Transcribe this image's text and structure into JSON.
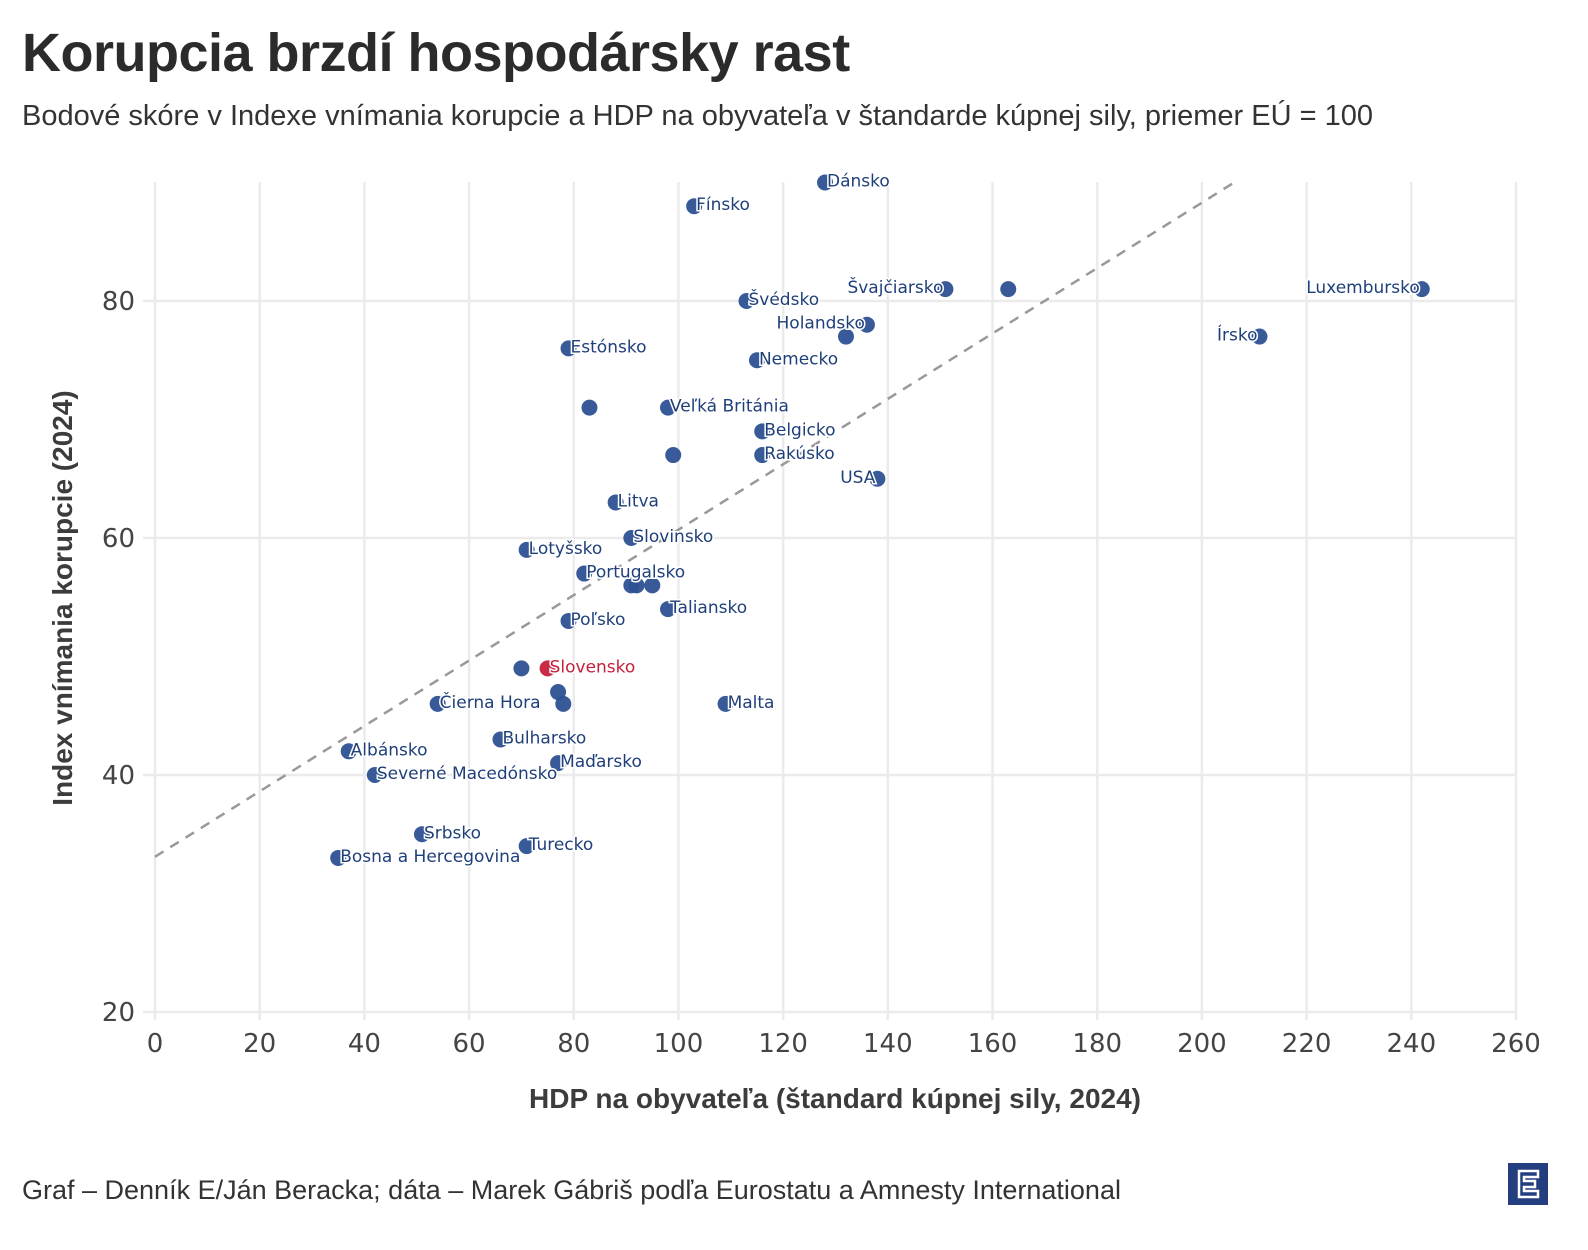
{
  "header": {
    "title": "Korupcia brzdí hospodársky rast",
    "subtitle": "Bodové skóre v Indexe vnímania korupcie a HDP na obyvateľa v štandarde kúpnej sily, priemer EÚ = 100"
  },
  "footer": {
    "credit": "Graf – Denník E/Ján Beracka; dáta – Marek Gábriš podľa Eurostatu a Amnesty International",
    "logo_icon": "denník-e-logo-icon"
  },
  "colors": {
    "point": "#2d5192",
    "label": "#1f3f7a",
    "highlight": "#c4213a",
    "trend": "#999999",
    "grid": "#ebebeb"
  },
  "chart_data": {
    "type": "scatter",
    "title": "Korupcia brzdí hospodársky rast",
    "xlabel": "HDP na obyvateľa (štandard kúpnej sily, 2024)",
    "ylabel": "Index vnímania korupcie (2024)",
    "xlim": [
      0,
      260
    ],
    "ylim": [
      20,
      90
    ],
    "xticks": [
      0,
      20,
      40,
      60,
      80,
      100,
      120,
      140,
      160,
      180,
      200,
      220,
      240,
      260
    ],
    "yticks": [
      20,
      40,
      60,
      80
    ],
    "grid": true,
    "trendline": {
      "style": "dashed",
      "intercept": 33.1,
      "slope": 0.276,
      "x_start": 0,
      "x_end": 206.3
    },
    "points": [
      {
        "label": "Dánsko",
        "x": 128,
        "y": 90,
        "label_side": "right"
      },
      {
        "label": "Fínsko",
        "x": 103,
        "y": 88,
        "label_side": "right"
      },
      {
        "label": "Švédsko",
        "x": 113,
        "y": 80,
        "label_side": "right"
      },
      {
        "label": "Švajčiarsko",
        "x": 151,
        "y": 81,
        "label_side": "left"
      },
      {
        "label": "",
        "x": 163,
        "y": 81
      },
      {
        "label": "Holandsko",
        "x": 136,
        "y": 78,
        "label_side": "left"
      },
      {
        "label": "",
        "x": 132,
        "y": 77
      },
      {
        "label": "Luxembursko",
        "x": 242,
        "y": 81,
        "label_side": "left"
      },
      {
        "label": "Írsko",
        "x": 211,
        "y": 77,
        "label_side": "left"
      },
      {
        "label": "Estónsko",
        "x": 79,
        "y": 76,
        "label_side": "right"
      },
      {
        "label": "Nemecko",
        "x": 115,
        "y": 75,
        "label_side": "right"
      },
      {
        "label": "",
        "x": 83,
        "y": 71
      },
      {
        "label": "Veľká Británia",
        "x": 98,
        "y": 71,
        "label_side": "right"
      },
      {
        "label": "Belgicko",
        "x": 116,
        "y": 69,
        "label_side": "right"
      },
      {
        "label": "",
        "x": 99,
        "y": 67
      },
      {
        "label": "Rakúsko",
        "x": 116,
        "y": 67,
        "label_side": "right"
      },
      {
        "label": "USA",
        "x": 138,
        "y": 65,
        "label_side": "left"
      },
      {
        "label": "Litva",
        "x": 88,
        "y": 63,
        "label_side": "right"
      },
      {
        "label": "Slovinsko",
        "x": 91,
        "y": 60,
        "label_side": "right"
      },
      {
        "label": "Lotyšsko",
        "x": 71,
        "y": 59,
        "label_side": "right"
      },
      {
        "label": "Portugalsko",
        "x": 82,
        "y": 57,
        "label_side": "right"
      },
      {
        "label": "",
        "x": 91,
        "y": 56
      },
      {
        "label": "",
        "x": 92,
        "y": 56
      },
      {
        "label": "",
        "x": 95,
        "y": 56
      },
      {
        "label": "Taliansko",
        "x": 98,
        "y": 54,
        "label_side": "right"
      },
      {
        "label": "Poľsko",
        "x": 79,
        "y": 53,
        "label_side": "right"
      },
      {
        "label": "",
        "x": 70,
        "y": 49
      },
      {
        "label": "Slovensko",
        "x": 75,
        "y": 49,
        "label_side": "right",
        "highlight": true
      },
      {
        "label": "",
        "x": 77,
        "y": 47
      },
      {
        "label": "",
        "x": 78,
        "y": 46
      },
      {
        "label": "Čierna Hora",
        "x": 54,
        "y": 46,
        "label_side": "right"
      },
      {
        "label": "Malta",
        "x": 109,
        "y": 46,
        "label_side": "right"
      },
      {
        "label": "Bulharsko",
        "x": 66,
        "y": 43,
        "label_side": "right"
      },
      {
        "label": "Albánsko",
        "x": 37,
        "y": 42,
        "label_side": "right"
      },
      {
        "label": "Maďarsko",
        "x": 77,
        "y": 41,
        "label_side": "right"
      },
      {
        "label": "Severné Macedónsko",
        "x": 42,
        "y": 40,
        "label_side": "right"
      },
      {
        "label": "Srbsko",
        "x": 51,
        "y": 35,
        "label_side": "right"
      },
      {
        "label": "Turecko",
        "x": 71,
        "y": 34,
        "label_side": "right"
      },
      {
        "label": "Bosna a Hercegovina",
        "x": 35,
        "y": 33,
        "label_side": "right"
      }
    ]
  }
}
